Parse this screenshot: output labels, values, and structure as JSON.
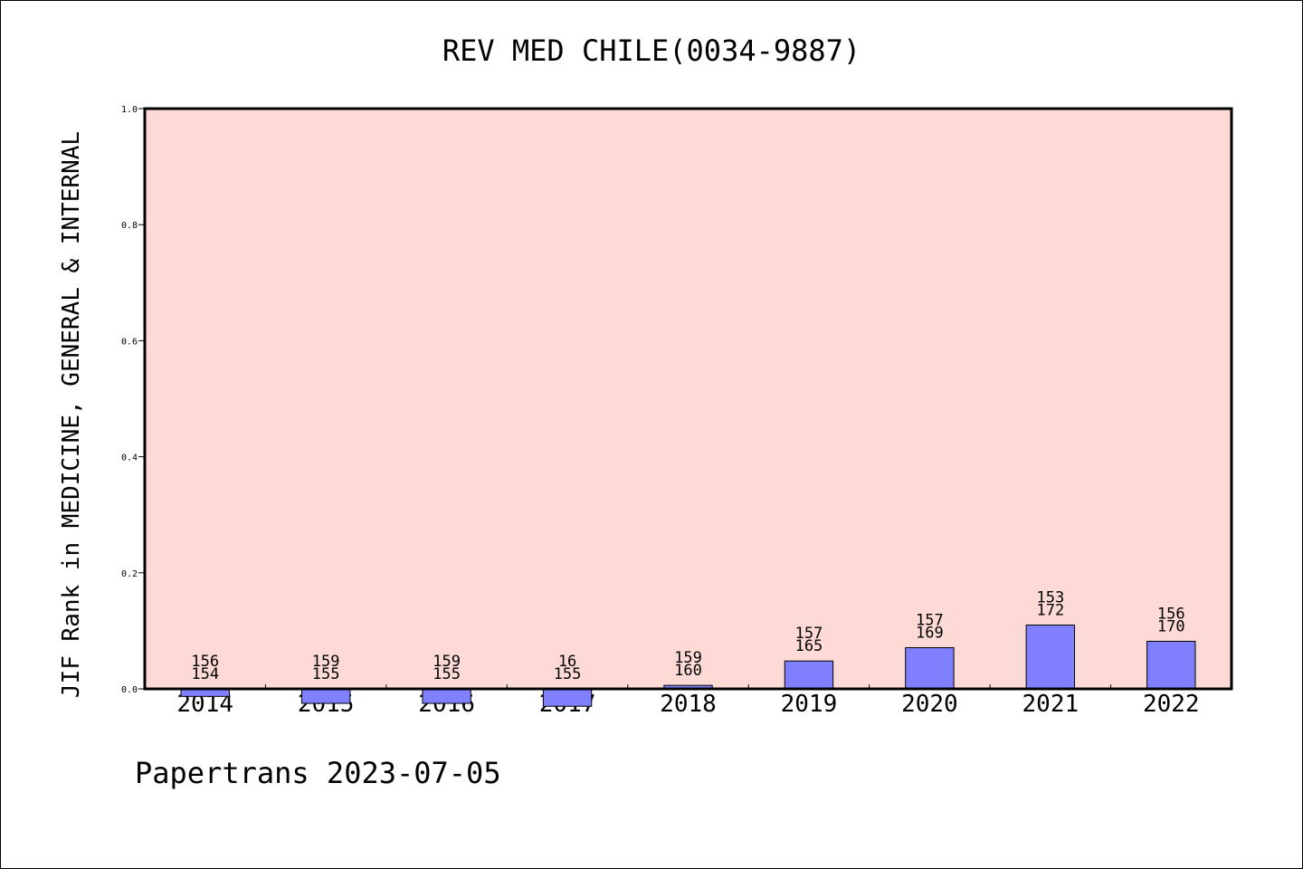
{
  "chart_data": {
    "type": "bar",
    "title": "REV MED CHILE(0034-9887)",
    "xlabel": "",
    "ylabel": "JIF Rank in MEDICINE, GENERAL & INTERNAL",
    "ylim": [
      0,
      1.0
    ],
    "yticks": [
      "0.0",
      "0.2",
      "0.4",
      "0.6",
      "0.8",
      "1.0"
    ],
    "grid": false,
    "categories": [
      "2014",
      "2015",
      "2016",
      "2017",
      "2018",
      "2019",
      "2020",
      "2021",
      "2022"
    ],
    "series": [
      {
        "values": [
          -0.013,
          -0.025,
          -0.025,
          -0.03,
          0.006,
          0.048,
          0.071,
          0.11,
          0.082
        ],
        "label_top": [
          "156",
          "159",
          "159",
          "16",
          "159",
          "157",
          "157",
          "153",
          "156"
        ],
        "label_bottom": [
          "154",
          "155",
          "155",
          "155",
          "160",
          "165",
          "169",
          "172",
          "170"
        ]
      }
    ],
    "colors": {
      "plot_background": "#fddad6",
      "bar_fill": "#8080ff",
      "axis": "#000000"
    }
  },
  "footer": "Papertrans 2023-07-05"
}
